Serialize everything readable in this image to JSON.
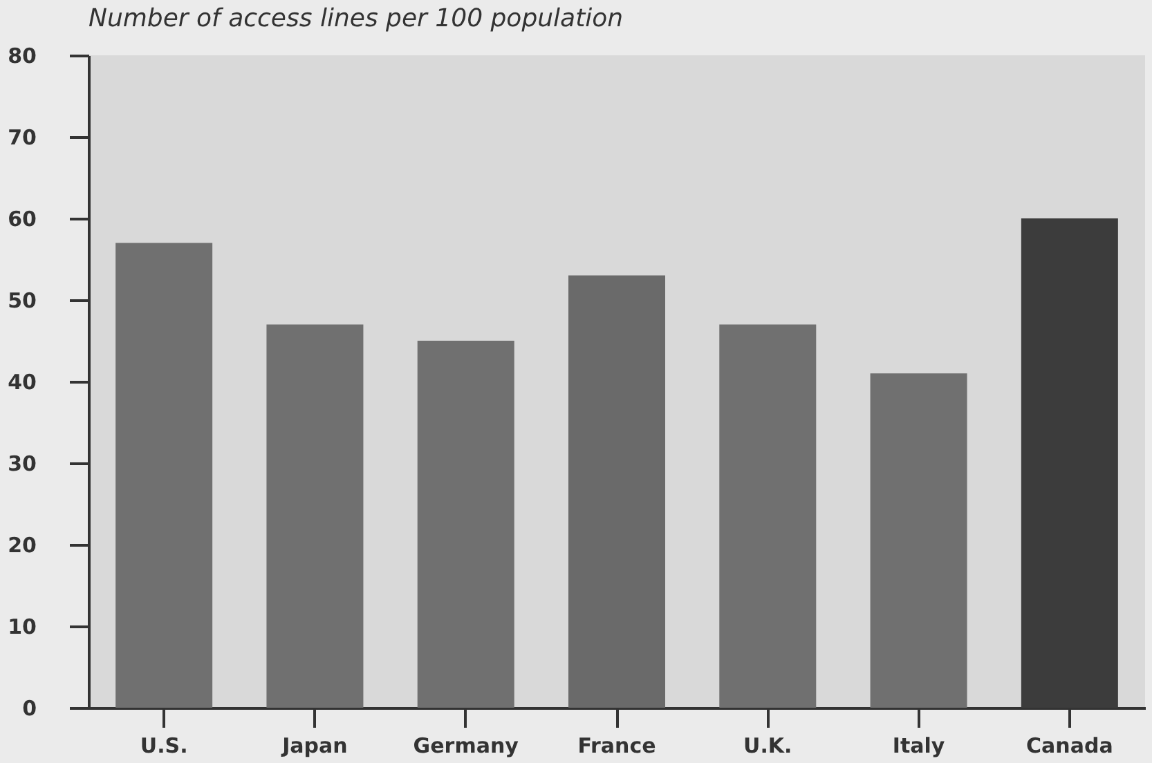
{
  "chart_data": {
    "type": "bar",
    "title": "Number of access lines per 100 population",
    "categories": [
      "U.S.",
      "Japan",
      "Germany",
      "France",
      "U.K.",
      "Italy",
      "Canada"
    ],
    "values": [
      57,
      47,
      45,
      53,
      47,
      41,
      60
    ],
    "colors": [
      "#707070",
      "#707070",
      "#707070",
      "#6a6a6a",
      "#707070",
      "#707070",
      "#3c3c3c"
    ],
    "ylim": [
      0,
      80
    ],
    "yticks": [
      0,
      10,
      20,
      30,
      40,
      50,
      60,
      70,
      80
    ],
    "grid": false
  }
}
